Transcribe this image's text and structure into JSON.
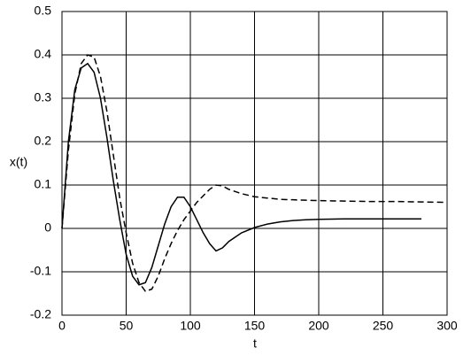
{
  "chart_data": {
    "type": "line",
    "xlabel": "t",
    "ylabel": "x(t)",
    "x": [
      0,
      5,
      10,
      15,
      20,
      25,
      30,
      35,
      40,
      45,
      50,
      55,
      60,
      65,
      70,
      75,
      80,
      85,
      90,
      95,
      100,
      105,
      110,
      115,
      120,
      125,
      130,
      140,
      150,
      160,
      170,
      180,
      190,
      200,
      220,
      240,
      260,
      280,
      300
    ],
    "series": [
      {
        "color": "#000000",
        "dashed": false,
        "values": [
          0,
          0.2,
          0.32,
          0.37,
          0.38,
          0.36,
          0.3,
          0.21,
          0.11,
          0.02,
          -0.06,
          -0.11,
          -0.13,
          -0.125,
          -0.09,
          -0.04,
          0.01,
          0.05,
          0.072,
          0.072,
          0.05,
          0.02,
          -0.01,
          -0.035,
          -0.052,
          -0.045,
          -0.03,
          -0.01,
          0.002,
          0.01,
          0.015,
          0.018,
          0.02,
          0.021,
          0.022,
          0.022,
          0.022,
          0.022,
          null
        ]
      },
      {
        "color": "#000000",
        "dashed": true,
        "values": [
          0,
          0.18,
          0.31,
          0.38,
          0.4,
          0.395,
          0.35,
          0.27,
          0.17,
          0.07,
          -0.01,
          -0.08,
          -0.125,
          -0.145,
          -0.14,
          -0.11,
          -0.07,
          -0.035,
          -0.005,
          0.02,
          0.04,
          0.06,
          0.075,
          0.09,
          0.1,
          0.098,
          0.09,
          0.08,
          0.073,
          0.07,
          0.067,
          0.066,
          0.065,
          0.064,
          0.063,
          0.062,
          0.062,
          0.061,
          0.06
        ]
      }
    ],
    "xlim": [
      0,
      300
    ],
    "ylim": [
      -0.2,
      0.5
    ],
    "xticks": [
      0,
      50,
      100,
      150,
      200,
      250,
      300
    ],
    "yticks": [
      -0.2,
      -0.1,
      0,
      0.1,
      0.2,
      0.3,
      0.4,
      0.5
    ],
    "grid": true
  }
}
